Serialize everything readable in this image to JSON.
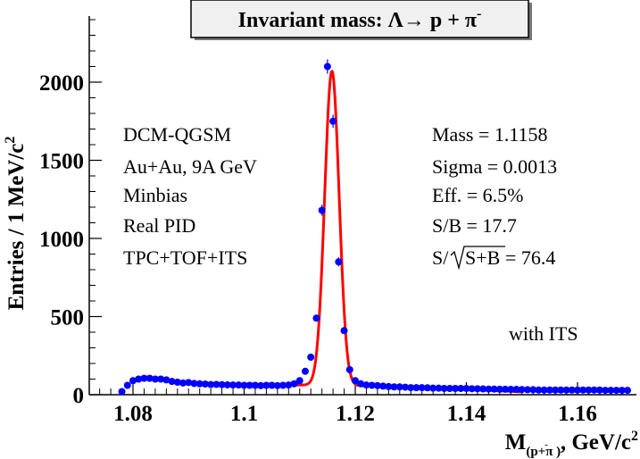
{
  "chart_data": {
    "type": "scatter",
    "title": "Invariant mass:  Λ→ p +  π",
    "title_superscript": "-",
    "xlabel": "M",
    "xlabel_subscript": "(p+π )",
    "xlabel_subscript_sup": "-",
    "xlabel_suffix": ", GeV/c",
    "xlabel_suffix_sup": "2",
    "ylabel": "Entries / 1 MeV/c",
    "ylabel_sup": "2",
    "xlim": [
      1.07,
      1.17
    ],
    "ylim": [
      0,
      2400
    ],
    "x_ticks": [
      1.08,
      1.1,
      1.12,
      1.14,
      1.16
    ],
    "x_tick_labels": [
      "1.08",
      "1.1",
      "1.12",
      "1.14",
      "1.16"
    ],
    "y_ticks": [
      0,
      500,
      1000,
      1500,
      2000
    ],
    "y_tick_labels": [
      "0",
      "500",
      "1000",
      "1500",
      "2000"
    ],
    "grid": false,
    "series": [
      {
        "kind": "points",
        "color": "#0000ff",
        "x": [
          1.078,
          1.079,
          1.08,
          1.081,
          1.082,
          1.083,
          1.084,
          1.085,
          1.086,
          1.087,
          1.088,
          1.089,
          1.09,
          1.091,
          1.092,
          1.093,
          1.094,
          1.095,
          1.096,
          1.097,
          1.098,
          1.099,
          1.1,
          1.101,
          1.102,
          1.103,
          1.104,
          1.105,
          1.106,
          1.107,
          1.108,
          1.109,
          1.11,
          1.111,
          1.112,
          1.113,
          1.114,
          1.115,
          1.116,
          1.117,
          1.118,
          1.119,
          1.12,
          1.121,
          1.122,
          1.123,
          1.124,
          1.125,
          1.126,
          1.127,
          1.128,
          1.129,
          1.13,
          1.131,
          1.132,
          1.133,
          1.134,
          1.135,
          1.136,
          1.137,
          1.138,
          1.139,
          1.14,
          1.141,
          1.142,
          1.143,
          1.144,
          1.145,
          1.146,
          1.147,
          1.148,
          1.149,
          1.15,
          1.151,
          1.152,
          1.153,
          1.154,
          1.155,
          1.156,
          1.157,
          1.158,
          1.159,
          1.16,
          1.161,
          1.162,
          1.163,
          1.164,
          1.165,
          1.166,
          1.167,
          1.168,
          1.169
        ],
        "y": [
          20,
          60,
          90,
          100,
          105,
          105,
          100,
          100,
          95,
          85,
          80,
          75,
          78,
          72,
          70,
          68,
          65,
          66,
          64,
          63,
          62,
          62,
          60,
          60,
          60,
          58,
          60,
          60,
          58,
          60,
          62,
          70,
          90,
          150,
          240,
          490,
          1180,
          2100,
          1750,
          850,
          410,
          160,
          90,
          70,
          62,
          60,
          58,
          55,
          52,
          50,
          50,
          48,
          45,
          45,
          45,
          44,
          42,
          42,
          40,
          40,
          40,
          40,
          40,
          38,
          38,
          37,
          36,
          36,
          35,
          35,
          34,
          34,
          33,
          32,
          32,
          30,
          30,
          30,
          30,
          30,
          30,
          30,
          30,
          30,
          30,
          30,
          30,
          28,
          28,
          28,
          28,
          28
        ]
      },
      {
        "kind": "fit",
        "color": "#ff0000",
        "peak_mean": 1.1158,
        "peak_sigma": 0.0013,
        "peak_amplitude": 2010,
        "background": {
          "x": [
            1.1,
            1.11,
            1.12,
            1.13,
            1.14,
            1.15
          ],
          "y": [
            68,
            62,
            58,
            48,
            34,
            18
          ]
        }
      }
    ],
    "annotations_left": [
      "DCM-QGSM",
      "Au+Au, 9A GeV",
      "Minbias",
      "Real PID",
      "TPC+TOF+ITS"
    ],
    "annotations_right": [
      "Mass = 1.1158",
      "Sigma = 0.0013",
      "Eff. = 6.5%",
      "S/B = 17.7"
    ],
    "annotation_sqrt_prefix": "S/",
    "annotation_sqrt_arg": "S+B",
    "annotation_sqrt_suffix": " = 76.4",
    "corner_label": "with ITS"
  }
}
